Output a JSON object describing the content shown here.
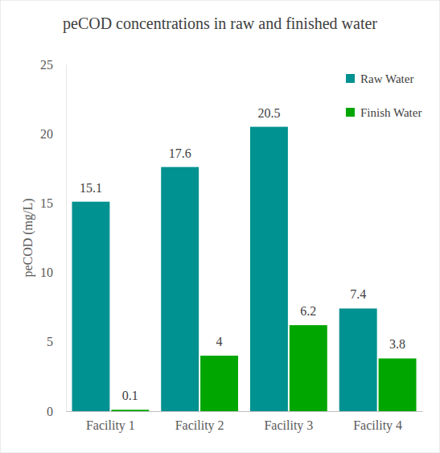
{
  "chart_data": {
    "type": "bar",
    "title": "peCOD concentrations in raw and finished water",
    "y_label": "peCOD (mg/L)",
    "categories": [
      "Facility 1",
      "Facility 2",
      "Facility 3",
      "Facility 4"
    ],
    "series": [
      {
        "name": "Raw Water",
        "color": "#009191",
        "values": [
          15.1,
          17.6,
          20.5,
          7.4
        ]
      },
      {
        "name": "Finish Water",
        "color": "#00a600",
        "values": [
          0.1,
          4,
          6.2,
          3.8
        ]
      }
    ],
    "ylim": [
      0,
      25
    ],
    "yticks": [
      0,
      5,
      10,
      15,
      20,
      25
    ],
    "grid": false,
    "legend": "upper right",
    "data_labels": true
  }
}
